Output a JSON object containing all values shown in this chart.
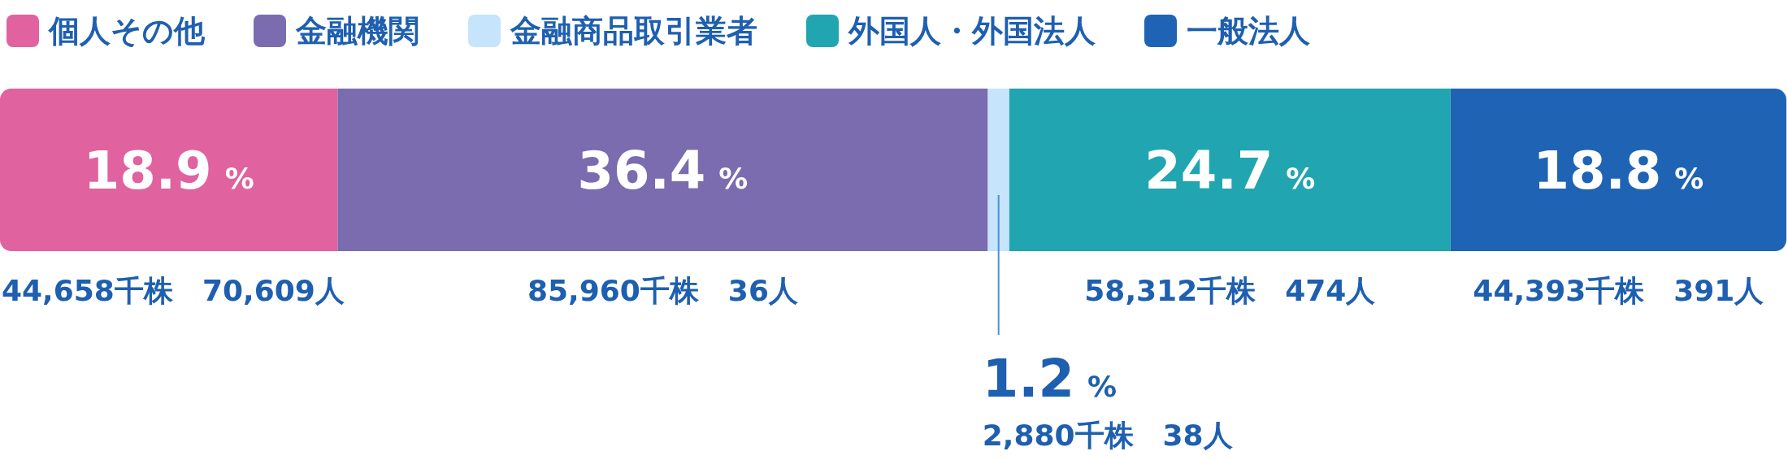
{
  "chart_data": {
    "type": "bar",
    "orientation": "horizontal",
    "stacked": true,
    "categories": [
      null
    ],
    "xlim": [
      0,
      100
    ],
    "legend": "top left",
    "series": [
      {
        "name": "個人その他",
        "color": "#e0629f",
        "values": [
          18.9
        ],
        "value_labels": [
          "18.9 %"
        ]
      },
      {
        "name": "金融機関",
        "color": "#7a6caf",
        "values": [
          36.4
        ],
        "value_labels": [
          "36.4 %"
        ]
      },
      {
        "name": "金融商品取引業者",
        "color": "#c6e4fb",
        "values": [
          1.2
        ],
        "value_labels": [
          "1.2 %"
        ]
      },
      {
        "name": "外国人・外国法人",
        "color": "#21a5b1",
        "values": [
          24.7
        ],
        "value_labels": [
          "24.7 %"
        ]
      },
      {
        "name": "一般法人",
        "color": "#1f63b5",
        "values": [
          18.8
        ],
        "value_labels": [
          "18.8 %"
        ]
      }
    ],
    "annotations": [
      "44,658千株　70,609人",
      "85,960千株　36人",
      "2,880千株　38人",
      "58,312千株　474人",
      "44,393千株　391人"
    ]
  }
}
